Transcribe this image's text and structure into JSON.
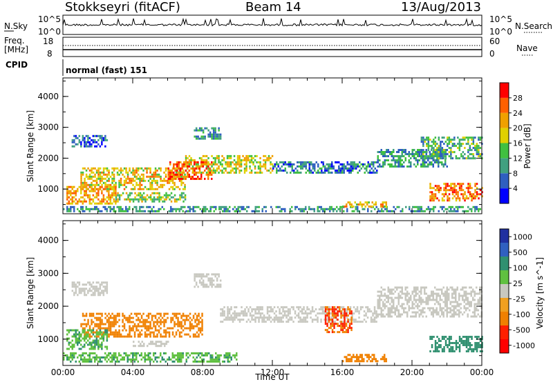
{
  "header": {
    "station": "Stokkseyri (fitACF)",
    "beam": "Beam 14",
    "date": "13/Aug/2013"
  },
  "nsky_panel": {
    "left_label": "N.Sky",
    "left_ticks": [
      "10^5",
      "10^0"
    ],
    "right_label": "N.Search",
    "right_ticks": [
      "10^5",
      "10^0"
    ]
  },
  "freq_panel": {
    "label_freq": "Freq.",
    "label_unit": "[MHz]",
    "left_ticks": [
      "18",
      "8"
    ],
    "right_label": "Nave",
    "right_ticks": [
      "60",
      "0"
    ]
  },
  "cpid_panel": {
    "label": "CPID",
    "text": "normal (fast) 151"
  },
  "x_axis": {
    "label": "Time UT",
    "ticks": [
      "00:00",
      "04:00",
      "08:00",
      "12:00",
      "16:00",
      "20:00",
      "00:00"
    ]
  },
  "colors": {
    "power": [
      "#0000ff",
      "#2f5fc0",
      "#40a080",
      "#40c040",
      "#e0d000",
      "#f0a000",
      "#ff6000",
      "#ff0000"
    ],
    "velocity": [
      "#2030a0",
      "#3060c0",
      "#309070",
      "#60c040",
      "#c8c8c0",
      "#f0a020",
      "#f08000",
      "#ff2000",
      "#ff0000"
    ]
  },
  "chart_data": [
    {
      "type": "heatmap",
      "name_panel": "power",
      "ylabel": "Slant Range [km]",
      "yticks": [
        "1000",
        "2000",
        "3000",
        "4000"
      ],
      "ylim": [
        200,
        4600
      ],
      "xlim": [
        0,
        24
      ],
      "colorbar_label": "Power [dB]",
      "colorbar_ticks": [
        "4",
        "8",
        "12",
        "16",
        "20",
        "24",
        "28"
      ],
      "bands": [
        {
          "x": [
            0.5,
            2.5
          ],
          "y": [
            2350,
            2750
          ],
          "value": 6
        },
        {
          "x": [
            7.5,
            9.0
          ],
          "y": [
            2600,
            3000
          ],
          "value": 10
        },
        {
          "x": [
            7.0,
            12.0
          ],
          "y": [
            1500,
            2100
          ],
          "value": 18
        },
        {
          "x": [
            12.0,
            18.0
          ],
          "y": [
            1500,
            1900
          ],
          "value": 8
        },
        {
          "x": [
            18.0,
            22.0
          ],
          "y": [
            1700,
            2300
          ],
          "value": 10
        },
        {
          "x": [
            20.5,
            24.0
          ],
          "y": [
            2000,
            2700
          ],
          "value": 12
        },
        {
          "x": [
            1.0,
            7.0
          ],
          "y": [
            1000,
            1700
          ],
          "value": 20
        },
        {
          "x": [
            6.0,
            8.5
          ],
          "y": [
            1300,
            1900
          ],
          "value": 26
        },
        {
          "x": [
            0.2,
            3.0
          ],
          "y": [
            500,
            1100
          ],
          "value": 22
        },
        {
          "x": [
            3.0,
            7.0
          ],
          "y": [
            600,
            900
          ],
          "value": 16
        },
        {
          "x": [
            21.0,
            24.0
          ],
          "y": [
            600,
            1200
          ],
          "value": 24
        },
        {
          "x": [
            0.0,
            24.0
          ],
          "y": [
            250,
            450
          ],
          "value": 10
        },
        {
          "x": [
            16.0,
            18.5
          ],
          "y": [
            400,
            600
          ],
          "value": 20
        }
      ]
    },
    {
      "type": "heatmap",
      "name_panel": "velocity",
      "ylabel": "Slant Range [km]",
      "yticks": [
        "1000",
        "2000",
        "3000",
        "4000"
      ],
      "ylim": [
        200,
        4600
      ],
      "xlim": [
        0,
        24
      ],
      "colorbar_label": "Velocity [m s^-1]",
      "colorbar_ticks": [
        "1000",
        "500",
        "100",
        "25",
        "-25",
        "-100",
        "-500",
        "-1000"
      ],
      "bands": [
        {
          "x": [
            0.5,
            2.5
          ],
          "y": [
            2350,
            2750
          ],
          "value": 0
        },
        {
          "x": [
            7.5,
            9.0
          ],
          "y": [
            2600,
            3000
          ],
          "value": 0
        },
        {
          "x": [
            9.0,
            18.0
          ],
          "y": [
            1500,
            2000
          ],
          "value": 0
        },
        {
          "x": [
            18.0,
            24.0
          ],
          "y": [
            1700,
            2600
          ],
          "value": 0
        },
        {
          "x": [
            1.0,
            8.0
          ],
          "y": [
            1100,
            1800
          ],
          "value": -200
        },
        {
          "x": [
            0.2,
            2.5
          ],
          "y": [
            700,
            1300
          ],
          "value": 80
        },
        {
          "x": [
            4.0,
            6.0
          ],
          "y": [
            800,
            950
          ],
          "value": 0
        },
        {
          "x": [
            15.0,
            16.5
          ],
          "y": [
            1200,
            2000
          ],
          "value": -500
        },
        {
          "x": [
            21.0,
            24.0
          ],
          "y": [
            600,
            1100
          ],
          "value": 300
        },
        {
          "x": [
            0.0,
            10.0
          ],
          "y": [
            300,
            600
          ],
          "value": 80
        },
        {
          "x": [
            16.0,
            18.5
          ],
          "y": [
            350,
            550
          ],
          "value": -200
        }
      ]
    }
  ]
}
